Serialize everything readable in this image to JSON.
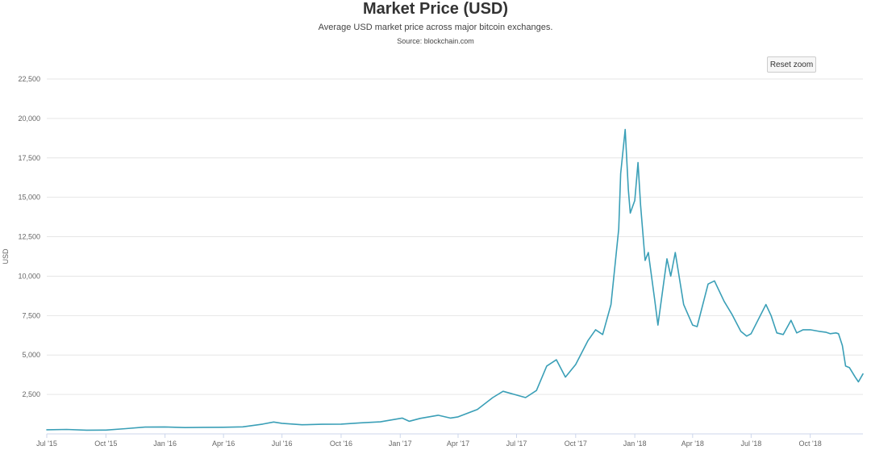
{
  "header": {
    "title": "Market Price (USD)",
    "subtitle": "Average USD market price across major bitcoin exchanges.",
    "source": "Source: blockchain.com"
  },
  "controls": {
    "reset_zoom_label": "Reset zoom"
  },
  "colors": {
    "line": "#3a9fb7",
    "grid": "#e6e6e6",
    "axis": "#ccd6eb"
  },
  "chart_data": {
    "type": "line",
    "title": "Market Price (USD)",
    "subtitle": "Average USD market price across major bitcoin exchanges.",
    "ylabel": "USD",
    "xlabel": "",
    "ylim": [
      0,
      22500
    ],
    "xlim": [
      "2015-07-01",
      "2018-12-22"
    ],
    "y_ticks": [
      0,
      2500,
      5000,
      7500,
      10000,
      12500,
      15000,
      17500,
      20000,
      22500
    ],
    "y_tick_labels": [
      "",
      "2,500",
      "5,000",
      "7,500",
      "10,000",
      "12,500",
      "15,000",
      "17,500",
      "20,000",
      "22,500"
    ],
    "x_ticks": [
      "2015-07-01",
      "2015-10-01",
      "2016-01-01",
      "2016-04-01",
      "2016-07-01",
      "2016-10-01",
      "2017-01-01",
      "2017-04-01",
      "2017-07-01",
      "2017-10-01",
      "2018-01-01",
      "2018-04-01",
      "2018-07-01",
      "2018-10-01"
    ],
    "x_tick_labels": [
      "Jul '15",
      "Oct '15",
      "Jan '16",
      "Apr '16",
      "Jul '16",
      "Oct '16",
      "Jan '17",
      "Apr '17",
      "Jul '17",
      "Oct '17",
      "Jan '18",
      "Apr '18",
      "Jul '18",
      "Oct '18"
    ],
    "grid": true,
    "legend": "none",
    "series": [
      {
        "x": [
          "2015-07-01",
          "2015-08-01",
          "2015-09-01",
          "2015-10-01",
          "2015-11-01",
          "2015-12-01",
          "2016-01-01",
          "2016-02-01",
          "2016-03-01",
          "2016-04-01",
          "2016-05-01",
          "2016-06-01",
          "2016-06-18",
          "2016-07-01",
          "2016-08-01",
          "2016-09-01",
          "2016-10-01",
          "2016-11-01",
          "2016-12-01",
          "2017-01-04",
          "2017-01-15",
          "2017-02-01",
          "2017-03-01",
          "2017-03-20",
          "2017-04-01",
          "2017-05-01",
          "2017-05-25",
          "2017-06-10",
          "2017-07-15",
          "2017-08-01",
          "2017-08-17",
          "2017-09-01",
          "2017-09-15",
          "2017-10-01",
          "2017-10-20",
          "2017-11-01",
          "2017-11-12",
          "2017-11-25",
          "2017-12-07",
          "2017-12-10",
          "2017-12-17",
          "2017-12-22",
          "2017-12-25",
          "2018-01-01",
          "2018-01-06",
          "2018-01-10",
          "2018-01-17",
          "2018-01-22",
          "2018-02-01",
          "2018-02-06",
          "2018-02-20",
          "2018-02-26",
          "2018-03-05",
          "2018-03-18",
          "2018-04-01",
          "2018-04-08",
          "2018-04-25",
          "2018-05-05",
          "2018-05-20",
          "2018-06-01",
          "2018-06-15",
          "2018-06-24",
          "2018-07-01",
          "2018-07-24",
          "2018-08-01",
          "2018-08-10",
          "2018-08-20",
          "2018-09-01",
          "2018-09-10",
          "2018-09-20",
          "2018-10-01",
          "2018-10-15",
          "2018-10-25",
          "2018-11-01",
          "2018-11-10",
          "2018-11-14",
          "2018-11-20",
          "2018-11-25",
          "2018-12-01",
          "2018-12-10",
          "2018-12-15",
          "2018-12-22"
        ],
        "y": [
          260,
          280,
          235,
          240,
          330,
          430,
          440,
          400,
          415,
          420,
          445,
          620,
          750,
          670,
          580,
          610,
          620,
          700,
          760,
          1000,
          800,
          980,
          1180,
          1000,
          1080,
          1550,
          2300,
          2700,
          2300,
          2750,
          4300,
          4700,
          3600,
          4400,
          5900,
          6600,
          6300,
          8200,
          13000,
          16500,
          19300,
          15500,
          14000,
          14800,
          17200,
          14500,
          11000,
          11500,
          8500,
          6900,
          11100,
          10000,
          11500,
          8200,
          6900,
          6800,
          9500,
          9700,
          8400,
          7600,
          6500,
          6200,
          6350,
          8200,
          7500,
          6400,
          6300,
          7200,
          6400,
          6600,
          6600,
          6500,
          6450,
          6350,
          6400,
          6350,
          5600,
          4300,
          4200,
          3600,
          3300,
          3800
        ]
      }
    ]
  }
}
